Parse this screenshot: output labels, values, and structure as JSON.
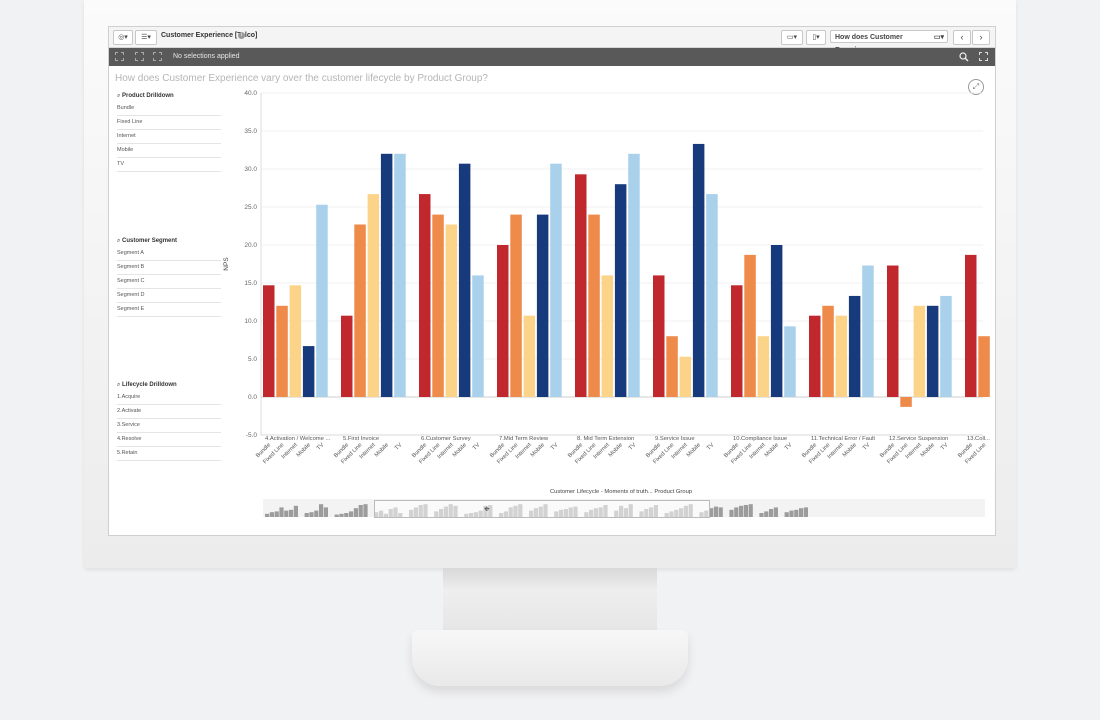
{
  "app": {
    "title": "Customer Experience [Telco]",
    "sheet_dropdown": "How does Customer Experience...",
    "selections_text": "No selections applied",
    "sheet_title": "How does Customer Experience vary over the customer lifecycle by Product Group?"
  },
  "filters": [
    {
      "title": "Product Drilldown",
      "items": [
        "Bundle",
        "Fixed Line",
        "Internet",
        "Mobile",
        "TV"
      ]
    },
    {
      "title": "Customer Segment",
      "items": [
        "Segment A",
        "Segment B",
        "Segment C",
        "Segment D",
        "Segment E"
      ]
    },
    {
      "title": "Lifecycle Drilldown",
      "items": [
        "1.Acquire",
        "2.Activate",
        "3.Service",
        "4.Resolve",
        "5.Retain"
      ]
    }
  ],
  "colors": {
    "Bundle": "#c0282e",
    "Fixed Line": "#ee8b4a",
    "Internet": "#fbd489",
    "Mobile": "#173a7c",
    "TV": "#a9d1ec",
    "scrubber": "#9c9c9c"
  },
  "icons": [
    "compass-icon",
    "list-icon",
    "info-icon",
    "monitor-icon",
    "bookmark-icon",
    "chevron-left-icon",
    "chevron-right-icon",
    "search-icon",
    "expand-icon"
  ],
  "chart_data": {
    "type": "bar",
    "ylabel": "NPS",
    "xlabel": "Customer Lifecycle - Moments of truth... Product Group",
    "ylim": [
      -5,
      40
    ],
    "yticks": [
      "40.0",
      "35.0",
      "30.0",
      "25.0",
      "20.0",
      "15.0",
      "10.0",
      "5.0",
      "0.0",
      "-5.0"
    ],
    "ytick_values": [
      40,
      35,
      30,
      25,
      20,
      15,
      10,
      5,
      0,
      -5
    ],
    "grid": true,
    "legend": "none",
    "series_names": [
      "Bundle",
      "Fixed Line",
      "Internet",
      "Mobile",
      "TV"
    ],
    "groups": [
      {
        "label": "4.Activation / Welcome ...",
        "values": [
          14.7,
          12.0,
          14.7,
          6.7,
          25.3
        ]
      },
      {
        "label": "5.First Invoice",
        "values": [
          10.7,
          22.7,
          26.7,
          32.0,
          32.0
        ]
      },
      {
        "label": "6.Customer Survey",
        "values": [
          26.7,
          24.0,
          22.7,
          30.7,
          16.0
        ]
      },
      {
        "label": "7.Mid Term Review",
        "values": [
          20.0,
          24.0,
          10.7,
          24.0,
          30.7
        ]
      },
      {
        "label": "8. Mid Term Extension",
        "values": [
          29.3,
          24.0,
          16.0,
          28.0,
          32.0
        ]
      },
      {
        "label": "9.Service Issue",
        "values": [
          16.0,
          8.0,
          5.3,
          33.3,
          26.7
        ]
      },
      {
        "label": "10.Compliance Issue",
        "values": [
          14.7,
          18.7,
          8.0,
          20.0,
          9.3
        ]
      },
      {
        "label": "11.Technical Error / Fault",
        "values": [
          10.7,
          12.0,
          10.7,
          13.3,
          17.3
        ]
      },
      {
        "label": "12.Service Suspension",
        "values": [
          17.3,
          -1.3,
          12.0,
          12.0,
          13.3
        ]
      },
      {
        "label": "13.Coll...",
        "values": [
          18.7,
          8.0
        ]
      }
    ],
    "scrubber_groups": [
      [
        20,
        30,
        35,
        60,
        40,
        45,
        70
      ],
      [
        25,
        30,
        40,
        80,
        60
      ],
      [
        15,
        20,
        25,
        35,
        55,
        75,
        80
      ],
      [
        30,
        40,
        20,
        50,
        60,
        25
      ],
      [
        45,
        60,
        75,
        80
      ],
      [
        35,
        50,
        65,
        80,
        70
      ],
      [
        20,
        25,
        30,
        40,
        70,
        75
      ],
      [
        25,
        35,
        60,
        70,
        80
      ],
      [
        40,
        55,
        65,
        80
      ],
      [
        35,
        45,
        50,
        60,
        65
      ],
      [
        30,
        45,
        55,
        60,
        75
      ],
      [
        40,
        70,
        55,
        80
      ],
      [
        35,
        50,
        60,
        75
      ],
      [
        25,
        35,
        45,
        55,
        70,
        80
      ],
      [
        30,
        40,
        55,
        65,
        60
      ],
      [
        45,
        60,
        70,
        75,
        80
      ],
      [
        25,
        35,
        50,
        60
      ],
      [
        30,
        40,
        45,
        55,
        60
      ]
    ]
  }
}
